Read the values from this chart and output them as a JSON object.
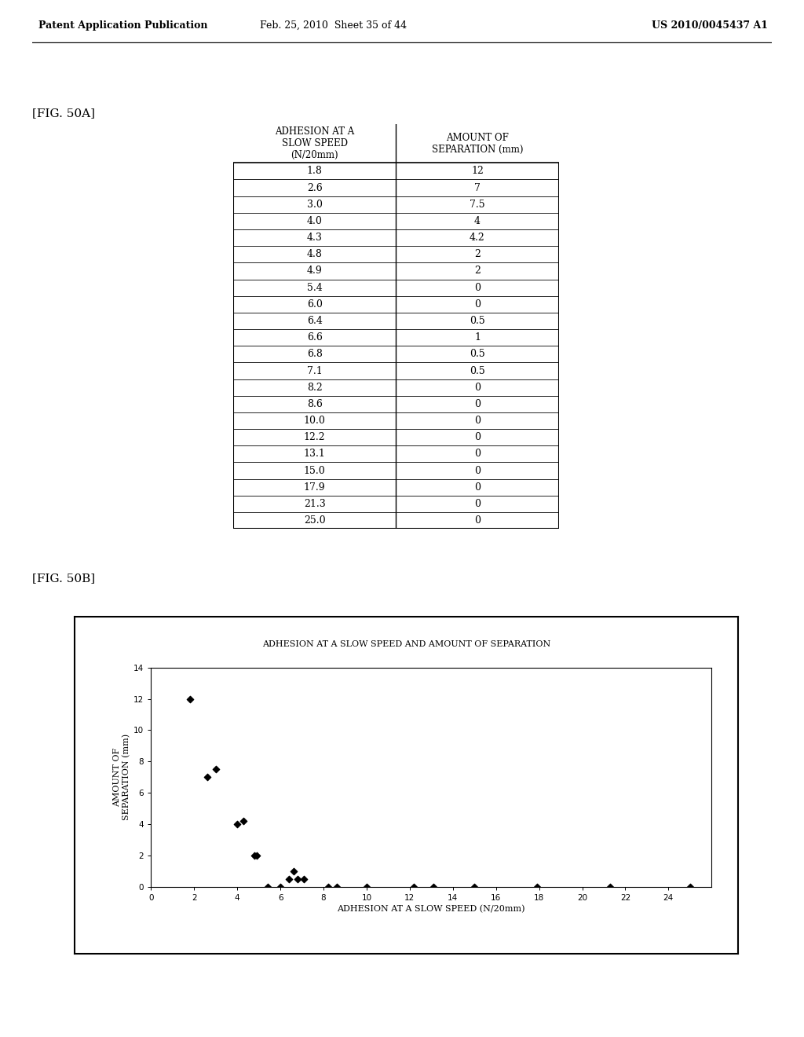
{
  "header_left": "Patent Application Publication",
  "header_mid": "Feb. 25, 2010  Sheet 35 of 44",
  "header_right": "US 2010/0045437 A1",
  "fig50a_label": "[FIG. 50A]",
  "fig50b_label": "[FIG. 50B]",
  "table_col1_header": "ADHESION AT A\nSLOW SPEED\n(N/20mm)",
  "table_col2_header": "AMOUNT OF\nSEPARATION (mm)",
  "table_col1_str": [
    "1.8",
    "2.6",
    "3.0",
    "4.0",
    "4.3",
    "4.8",
    "4.9",
    "5.4",
    "6.0",
    "6.4",
    "6.6",
    "6.8",
    "7.1",
    "8.2",
    "8.6",
    "10.0",
    "12.2",
    "13.1",
    "15.0",
    "17.9",
    "21.3",
    "25.0"
  ],
  "table_col2_str": [
    "12",
    "7",
    "7.5",
    "4",
    "4.2",
    "2",
    "2",
    "0",
    "0",
    "0.5",
    "1",
    "0.5",
    "0.5",
    "0",
    "0",
    "0",
    "0",
    "0",
    "0",
    "0",
    "0",
    "0"
  ],
  "table_data_x": [
    1.8,
    2.6,
    3.0,
    4.0,
    4.3,
    4.8,
    4.9,
    5.4,
    6.0,
    6.4,
    6.6,
    6.8,
    7.1,
    8.2,
    8.6,
    10.0,
    12.2,
    13.1,
    15.0,
    17.9,
    21.3,
    25.0
  ],
  "table_data_y": [
    12,
    7,
    7.5,
    4,
    4.2,
    2,
    2,
    0,
    0,
    0.5,
    1,
    0.5,
    0.5,
    0,
    0,
    0,
    0,
    0,
    0,
    0,
    0,
    0
  ],
  "chart_title": "ADHESION AT A SLOW SPEED AND AMOUNT OF SEPARATION",
  "chart_xlabel": "ADHESION AT A SLOW SPEED (N/20mm)",
  "chart_ylabel_line1": "AMOUNT OF",
  "chart_ylabel_line2": "SEPARATION (mm)",
  "chart_xlim": [
    0,
    26
  ],
  "chart_ylim": [
    0,
    14
  ],
  "chart_xticks": [
    0,
    2,
    4,
    6,
    8,
    10,
    12,
    14,
    16,
    18,
    20,
    22,
    24
  ],
  "chart_yticks": [
    0,
    2,
    4,
    6,
    8,
    10,
    12,
    14
  ],
  "bg_color": "#ffffff"
}
